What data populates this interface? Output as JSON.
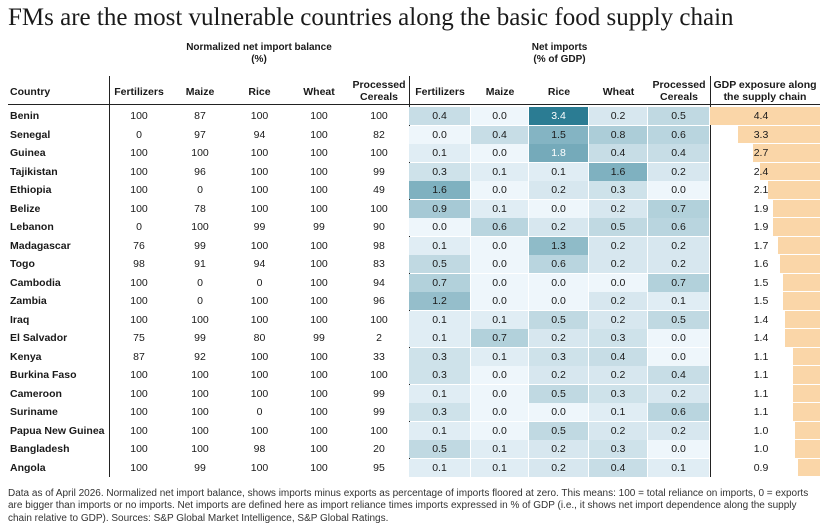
{
  "title": "FMs are the most vulnerable countries along the basic food supply chain",
  "chart_data": {
    "type": "table",
    "groups": {
      "balance": "Normalized net import balance\n(%)",
      "imports": "Net imports\n(% of GDP)"
    },
    "columns": {
      "country": "Country",
      "balance": [
        "Fertilizers",
        "Maize",
        "Rice",
        "Wheat",
        "Processed\nCereals"
      ],
      "imports": [
        "Fertilizers",
        "Maize",
        "Rice",
        "Wheat",
        "Processed\nCereals"
      ],
      "exposure": "GDP exposure along\nthe supply chain"
    },
    "rows": [
      {
        "country": "Benin",
        "balance": [
          100,
          87,
          100,
          100,
          100
        ],
        "imports": [
          0.4,
          0.0,
          3.4,
          0.2,
          0.5
        ],
        "exposure": 4.4
      },
      {
        "country": "Senegal",
        "balance": [
          0,
          97,
          94,
          100,
          82
        ],
        "imports": [
          0.0,
          0.4,
          1.5,
          0.8,
          0.6
        ],
        "exposure": 3.3
      },
      {
        "country": "Guinea",
        "balance": [
          100,
          100,
          100,
          100,
          100
        ],
        "imports": [
          0.1,
          0.0,
          1.8,
          0.4,
          0.4
        ],
        "exposure": 2.7
      },
      {
        "country": "Tajikistan",
        "balance": [
          100,
          96,
          100,
          100,
          99
        ],
        "imports": [
          0.3,
          0.1,
          0.1,
          1.6,
          0.2
        ],
        "exposure": 2.4
      },
      {
        "country": "Ethiopia",
        "balance": [
          100,
          0,
          100,
          100,
          49
        ],
        "imports": [
          1.6,
          0.0,
          0.2,
          0.3,
          0.0
        ],
        "exposure": 2.1
      },
      {
        "country": "Belize",
        "balance": [
          100,
          78,
          100,
          100,
          100
        ],
        "imports": [
          0.9,
          0.1,
          0.0,
          0.2,
          0.7
        ],
        "exposure": 1.9
      },
      {
        "country": "Lebanon",
        "balance": [
          0,
          100,
          99,
          99,
          90
        ],
        "imports": [
          0.0,
          0.6,
          0.2,
          0.5,
          0.6
        ],
        "exposure": 1.9
      },
      {
        "country": "Madagascar",
        "balance": [
          76,
          99,
          100,
          100,
          98
        ],
        "imports": [
          0.1,
          0.0,
          1.3,
          0.2,
          0.2
        ],
        "exposure": 1.7
      },
      {
        "country": "Togo",
        "balance": [
          98,
          91,
          94,
          100,
          83
        ],
        "imports": [
          0.5,
          0.0,
          0.6,
          0.2,
          0.2
        ],
        "exposure": 1.6
      },
      {
        "country": "Cambodia",
        "balance": [
          100,
          0,
          0,
          100,
          94
        ],
        "imports": [
          0.7,
          0.0,
          0.0,
          0.0,
          0.7
        ],
        "exposure": 1.5
      },
      {
        "country": "Zambia",
        "balance": [
          100,
          0,
          100,
          100,
          96
        ],
        "imports": [
          1.2,
          0.0,
          0.0,
          0.2,
          0.1
        ],
        "exposure": 1.5
      },
      {
        "country": "Iraq",
        "balance": [
          100,
          100,
          100,
          100,
          100
        ],
        "imports": [
          0.1,
          0.1,
          0.5,
          0.2,
          0.5
        ],
        "exposure": 1.4
      },
      {
        "country": "El Salvador",
        "balance": [
          75,
          99,
          80,
          99,
          2
        ],
        "imports": [
          0.1,
          0.7,
          0.2,
          0.3,
          0.0
        ],
        "exposure": 1.4
      },
      {
        "country": "Kenya",
        "balance": [
          87,
          92,
          100,
          100,
          33
        ],
        "imports": [
          0.3,
          0.1,
          0.3,
          0.4,
          0.0
        ],
        "exposure": 1.1
      },
      {
        "country": "Burkina Faso",
        "balance": [
          100,
          100,
          100,
          100,
          100
        ],
        "imports": [
          0.3,
          0.0,
          0.2,
          0.2,
          0.4
        ],
        "exposure": 1.1
      },
      {
        "country": "Cameroon",
        "balance": [
          100,
          100,
          100,
          100,
          99
        ],
        "imports": [
          0.1,
          0.0,
          0.5,
          0.3,
          0.2
        ],
        "exposure": 1.1
      },
      {
        "country": "Suriname",
        "balance": [
          100,
          100,
          0,
          100,
          99
        ],
        "imports": [
          0.3,
          0.0,
          0.0,
          0.1,
          0.6
        ],
        "exposure": 1.1
      },
      {
        "country": "Papua New Guinea",
        "balance": [
          100,
          100,
          100,
          100,
          100
        ],
        "imports": [
          0.1,
          0.0,
          0.5,
          0.2,
          0.2
        ],
        "exposure": 1.0
      },
      {
        "country": "Bangladesh",
        "balance": [
          100,
          100,
          98,
          100,
          20
        ],
        "imports": [
          0.5,
          0.1,
          0.2,
          0.3,
          0.0
        ],
        "exposure": 1.0
      },
      {
        "country": "Angola",
        "balance": [
          100,
          99,
          100,
          100,
          95
        ],
        "imports": [
          0.1,
          0.1,
          0.2,
          0.4,
          0.1
        ],
        "exposure": 0.9
      }
    ],
    "colors": {
      "heat_low": "#eef6fb",
      "heat_high": "#2b7c93",
      "exposure_bar": "#fad6a8"
    }
  },
  "footnote": "Data as of April 2026. Normalized net import balance, shows imports minus exports as percentage of imports floored at zero. This means: 100 = total reliance on imports, 0 = exports are bigger than imports or no imports. Net imports are defined here as import reliance times imports expressed in % of GDP (i.e., it shows net import dependence along the supply chain relative to GDP). Sources: S&P Global Market Intelligence, S&P Global Ratings."
}
